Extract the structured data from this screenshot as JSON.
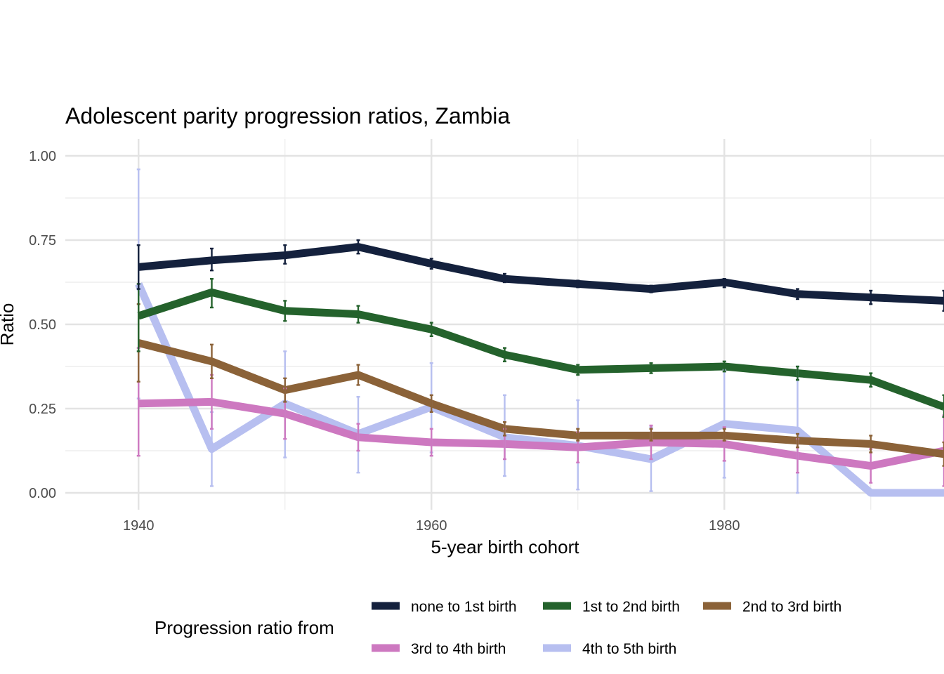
{
  "chart_data": {
    "type": "line",
    "title": "Adolescent parity progression ratios,  Zambia",
    "xlabel": "5-year birth cohort",
    "ylabel": "Ratio",
    "xlim": [
      1935,
      1995
    ],
    "ylim": [
      -0.05,
      1.05
    ],
    "x_ticks": [
      1940,
      1960,
      1980
    ],
    "x_tick_labels": [
      "1940",
      "1960",
      "1980"
    ],
    "x_minor_ticks": [
      1950,
      1970,
      1990
    ],
    "y_ticks": [
      0,
      0.25,
      0.5,
      0.75,
      1.0
    ],
    "y_tick_labels": [
      "0.00",
      "0.25",
      "0.50",
      "0.75",
      "1.00"
    ],
    "y_minor_ticks": [
      0.125,
      0.375,
      0.625,
      0.875
    ],
    "grid": true,
    "legend_title": "Progression ratio from",
    "legend_position": "bottom",
    "x": [
      1940,
      1945,
      1950,
      1955,
      1960,
      1965,
      1970,
      1975,
      1980,
      1985,
      1990,
      1995
    ],
    "series": [
      {
        "name": "none to 1st birth",
        "color": "#14213d",
        "values": [
          0.67,
          0.69,
          0.705,
          0.73,
          0.68,
          0.635,
          0.62,
          0.605,
          0.625,
          0.59,
          0.58,
          0.57
        ],
        "lower": [
          0.605,
          0.66,
          0.68,
          0.71,
          0.665,
          0.625,
          0.61,
          0.595,
          0.61,
          0.575,
          0.56,
          0.54
        ],
        "upper": [
          0.735,
          0.725,
          0.735,
          0.75,
          0.695,
          0.65,
          0.63,
          0.615,
          0.635,
          0.605,
          0.6,
          0.6
        ]
      },
      {
        "name": "1st to 2nd birth",
        "color": "#24622c",
        "values": [
          0.525,
          0.595,
          0.54,
          0.53,
          0.485,
          0.41,
          0.365,
          0.37,
          0.375,
          0.355,
          0.335,
          0.255
        ],
        "lower": [
          0.42,
          0.55,
          0.51,
          0.505,
          0.465,
          0.39,
          0.35,
          0.355,
          0.36,
          0.335,
          0.315,
          0.225
        ],
        "upper": [
          0.62,
          0.635,
          0.57,
          0.555,
          0.505,
          0.43,
          0.38,
          0.385,
          0.39,
          0.375,
          0.355,
          0.29
        ]
      },
      {
        "name": "2nd to 3rd birth",
        "color": "#8b6238",
        "values": [
          0.445,
          0.39,
          0.305,
          0.35,
          0.265,
          0.19,
          0.17,
          0.17,
          0.17,
          0.155,
          0.145,
          0.115
        ],
        "lower": [
          0.33,
          0.34,
          0.27,
          0.32,
          0.24,
          0.17,
          0.155,
          0.155,
          0.155,
          0.135,
          0.12,
          0.08
        ],
        "upper": [
          0.56,
          0.44,
          0.34,
          0.38,
          0.29,
          0.21,
          0.19,
          0.19,
          0.19,
          0.175,
          0.17,
          0.15
        ]
      },
      {
        "name": "3rd to 4th birth",
        "color": "#cd78c0",
        "values": [
          0.265,
          0.27,
          0.235,
          0.165,
          0.15,
          0.145,
          0.135,
          0.15,
          0.145,
          0.11,
          0.08,
          0.125
        ],
        "lower": [
          0.11,
          0.19,
          0.16,
          0.125,
          0.11,
          0.1,
          0.09,
          0.1,
          0.095,
          0.06,
          0.03,
          0.02
        ],
        "upper": [
          0.43,
          0.35,
          0.31,
          0.205,
          0.19,
          0.19,
          0.18,
          0.2,
          0.195,
          0.16,
          0.13,
          0.23
        ]
      },
      {
        "name": "4th to 5th birth",
        "color": "#b7bff0",
        "values": [
          0.62,
          0.13,
          0.265,
          0.175,
          0.255,
          0.165,
          0.14,
          0.1,
          0.205,
          0.185,
          0,
          0
        ],
        "lower": [
          0.28,
          0.02,
          0.105,
          0.06,
          0.12,
          0.05,
          0.01,
          0.005,
          0.045,
          0.0,
          0,
          0
        ],
        "upper": [
          0.96,
          0.24,
          0.42,
          0.285,
          0.385,
          0.29,
          0.275,
          0.195,
          0.365,
          0.375,
          0,
          0
        ]
      }
    ]
  }
}
